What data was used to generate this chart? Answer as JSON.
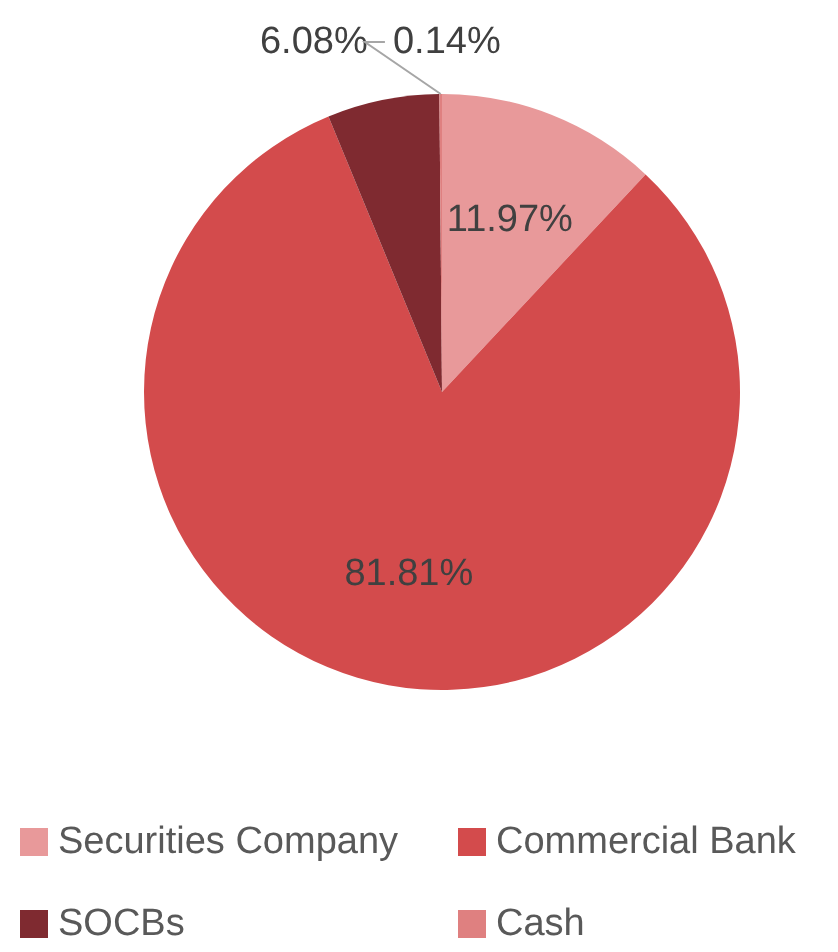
{
  "chart_data": {
    "type": "pie",
    "categories": [
      "Securities Company",
      "Commercial Bank",
      "SOCBs",
      "Cash"
    ],
    "values": [
      11.97,
      81.81,
      6.08,
      0.14
    ],
    "value_labels": [
      "11.97%",
      "81.81%",
      "6.08%",
      "0.14%"
    ],
    "colors": [
      "#e8999a",
      "#d34b4c",
      "#7f2a30",
      "#df8080"
    ],
    "legend": "bottom"
  }
}
